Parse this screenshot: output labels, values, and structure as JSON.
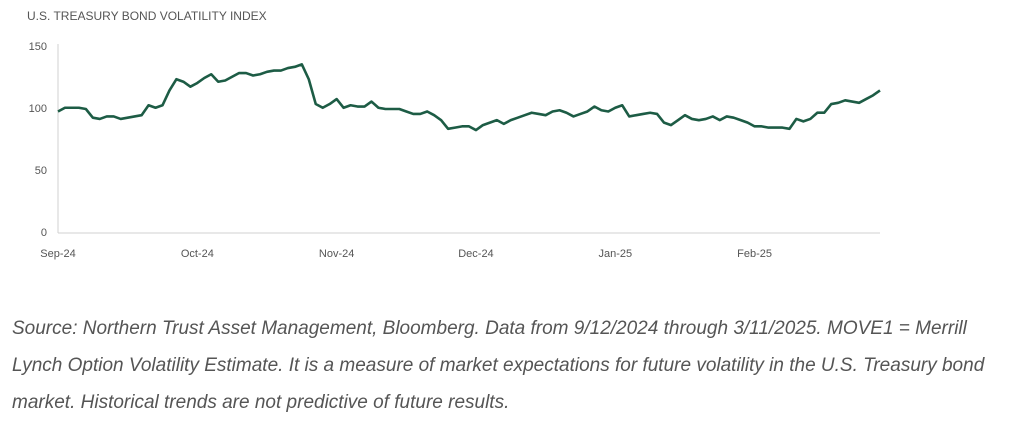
{
  "chart_data": {
    "type": "line",
    "title": "U.S. TREASURY BOND VOLATILITY INDEX",
    "categories": [
      "Sep-24",
      null,
      null,
      null,
      null,
      null,
      null,
      null,
      null,
      null,
      null,
      null,
      null,
      null,
      null,
      null,
      null,
      null,
      null,
      null,
      "Oct-24",
      null,
      null,
      null,
      null,
      null,
      null,
      null,
      null,
      null,
      null,
      null,
      null,
      null,
      null,
      null,
      null,
      null,
      null,
      null,
      "Nov-24",
      null,
      null,
      null,
      null,
      null,
      null,
      null,
      null,
      null,
      null,
      null,
      null,
      null,
      null,
      null,
      null,
      null,
      null,
      null,
      "Dec-24",
      null,
      null,
      null,
      null,
      null,
      null,
      null,
      null,
      null,
      null,
      null,
      null,
      null,
      null,
      null,
      null,
      null,
      null,
      null,
      "Jan-25",
      null,
      null,
      null,
      null,
      null,
      null,
      null,
      null,
      null,
      null,
      null,
      null,
      null,
      null,
      null,
      null,
      null,
      null,
      null,
      "Feb-25",
      null,
      null,
      null,
      null,
      null,
      null,
      null,
      null,
      null,
      null,
      null,
      null,
      null,
      null,
      null,
      null,
      null,
      null
    ],
    "values": [
      98,
      101,
      101,
      101,
      100,
      93,
      92,
      94,
      94,
      92,
      93,
      94,
      95,
      103,
      101,
      103,
      115,
      124,
      122,
      118,
      121,
      125,
      128,
      122,
      123,
      126,
      129,
      129,
      127,
      128,
      130,
      131,
      131,
      133,
      134,
      136,
      124,
      104,
      101,
      104,
      108,
      101,
      103,
      102,
      102,
      106,
      101,
      100,
      100,
      100,
      98,
      96,
      96,
      98,
      95,
      91,
      84,
      85,
      86,
      86,
      83,
      87,
      89,
      91,
      88,
      91,
      93,
      95,
      97,
      96,
      95,
      98,
      99,
      97,
      94,
      96,
      98,
      102,
      99,
      98,
      101,
      103,
      94,
      95,
      96,
      97,
      96,
      89,
      87,
      91,
      95,
      92,
      91,
      92,
      94,
      91,
      94,
      93,
      91,
      89,
      86,
      86,
      85,
      85,
      85,
      84,
      92,
      90,
      92,
      97,
      97,
      104,
      105,
      107,
      106,
      105,
      108,
      111,
      115
    ],
    "color": "#1d5c45",
    "ylim": [
      0,
      150
    ],
    "yticks": [
      0,
      50,
      100,
      150
    ],
    "grid": false,
    "source": "Source: Northern Trust Asset Management, Bloomberg. Data from 9/12/2024 through 3/11/2025. MOVE1 = Merrill Lynch Option Volatility Estimate. It is a measure of market expectations for future volatility in the U.S. Treasury bond market. Historical trends are not predictive of future results."
  }
}
